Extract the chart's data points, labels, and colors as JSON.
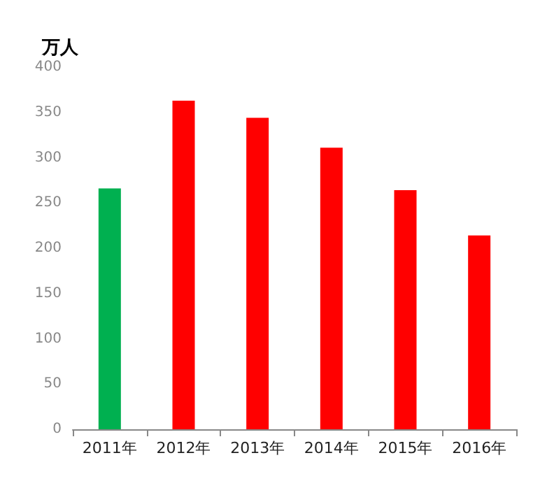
{
  "chart_data": {
    "type": "bar",
    "ylabel": "万人",
    "categories": [
      "2011年",
      "2012年",
      "2013年",
      "2014年",
      "2015年",
      "2016年"
    ],
    "values": [
      266,
      363,
      344,
      311,
      264,
      214
    ],
    "colors": [
      "#00b050",
      "#ff0000",
      "#ff0000",
      "#ff0000",
      "#ff0000",
      "#ff0000"
    ],
    "ylim": [
      0,
      400
    ],
    "yticks": [
      0,
      50,
      100,
      150,
      200,
      250,
      300,
      350,
      400
    ],
    "grid": false
  }
}
